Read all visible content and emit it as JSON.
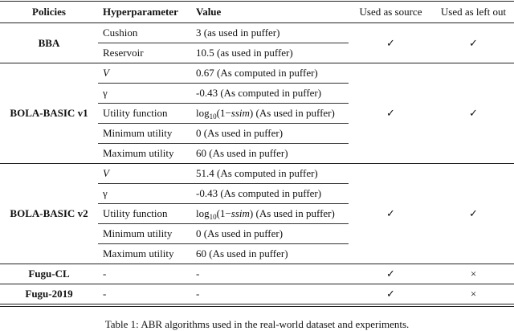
{
  "headers": [
    "Policies",
    "Hyperparameter",
    "Value",
    "Used as source",
    "Used as left out"
  ],
  "groups": [
    {
      "policy": "BBA",
      "source": "✓",
      "left_out": "✓",
      "rows": [
        {
          "param": "Cushion",
          "value": "3 (as used in puffer)"
        },
        {
          "param": "Reservoir",
          "value": "10.5 (as used in puffer)"
        }
      ]
    },
    {
      "policy": "BOLA-BASIC v1",
      "source": "✓",
      "left_out": "✓",
      "rows": [
        {
          "param": "V",
          "value": "0.67 (As computed in puffer)"
        },
        {
          "param": "γ",
          "value": "-0.43 (As computed in puffer)"
        },
        {
          "param": "Utility function",
          "value_pre": "log",
          "value_sub": "10",
          "value_mid": "(1−",
          "value_ital": "ssim",
          "value_post": ") (As used in puffer)"
        },
        {
          "param": "Minimum utility",
          "value": "0 (As used in puffer)"
        },
        {
          "param": "Maximum utility",
          "value": "60 (As used in puffer)"
        }
      ]
    },
    {
      "policy": "BOLA-BASIC v2",
      "source": "✓",
      "left_out": "✓",
      "rows": [
        {
          "param": "V",
          "value": "51.4 (As computed in puffer)"
        },
        {
          "param": "γ",
          "value": "-0.43 (As computed in puffer)"
        },
        {
          "param": "Utility function",
          "value_pre": "log",
          "value_sub": "10",
          "value_mid": "(1−",
          "value_ital": "ssim",
          "value_post": ") (As used in puffer)"
        },
        {
          "param": "Minimum utility",
          "value": "0 (As used in puffer)"
        },
        {
          "param": "Maximum utility",
          "value": "60 (As used in puffer)"
        }
      ]
    },
    {
      "policy": "Fugu-CL",
      "source": "✓",
      "left_out": "×",
      "rows": [
        {
          "param": "-",
          "value": "-"
        }
      ]
    },
    {
      "policy": "Fugu-2019",
      "source": "✓",
      "left_out": "×",
      "rows": [
        {
          "param": "-",
          "value": "-"
        }
      ]
    }
  ],
  "caption": "Table 1: ABR algorithms used in the real-world dataset and experiments."
}
